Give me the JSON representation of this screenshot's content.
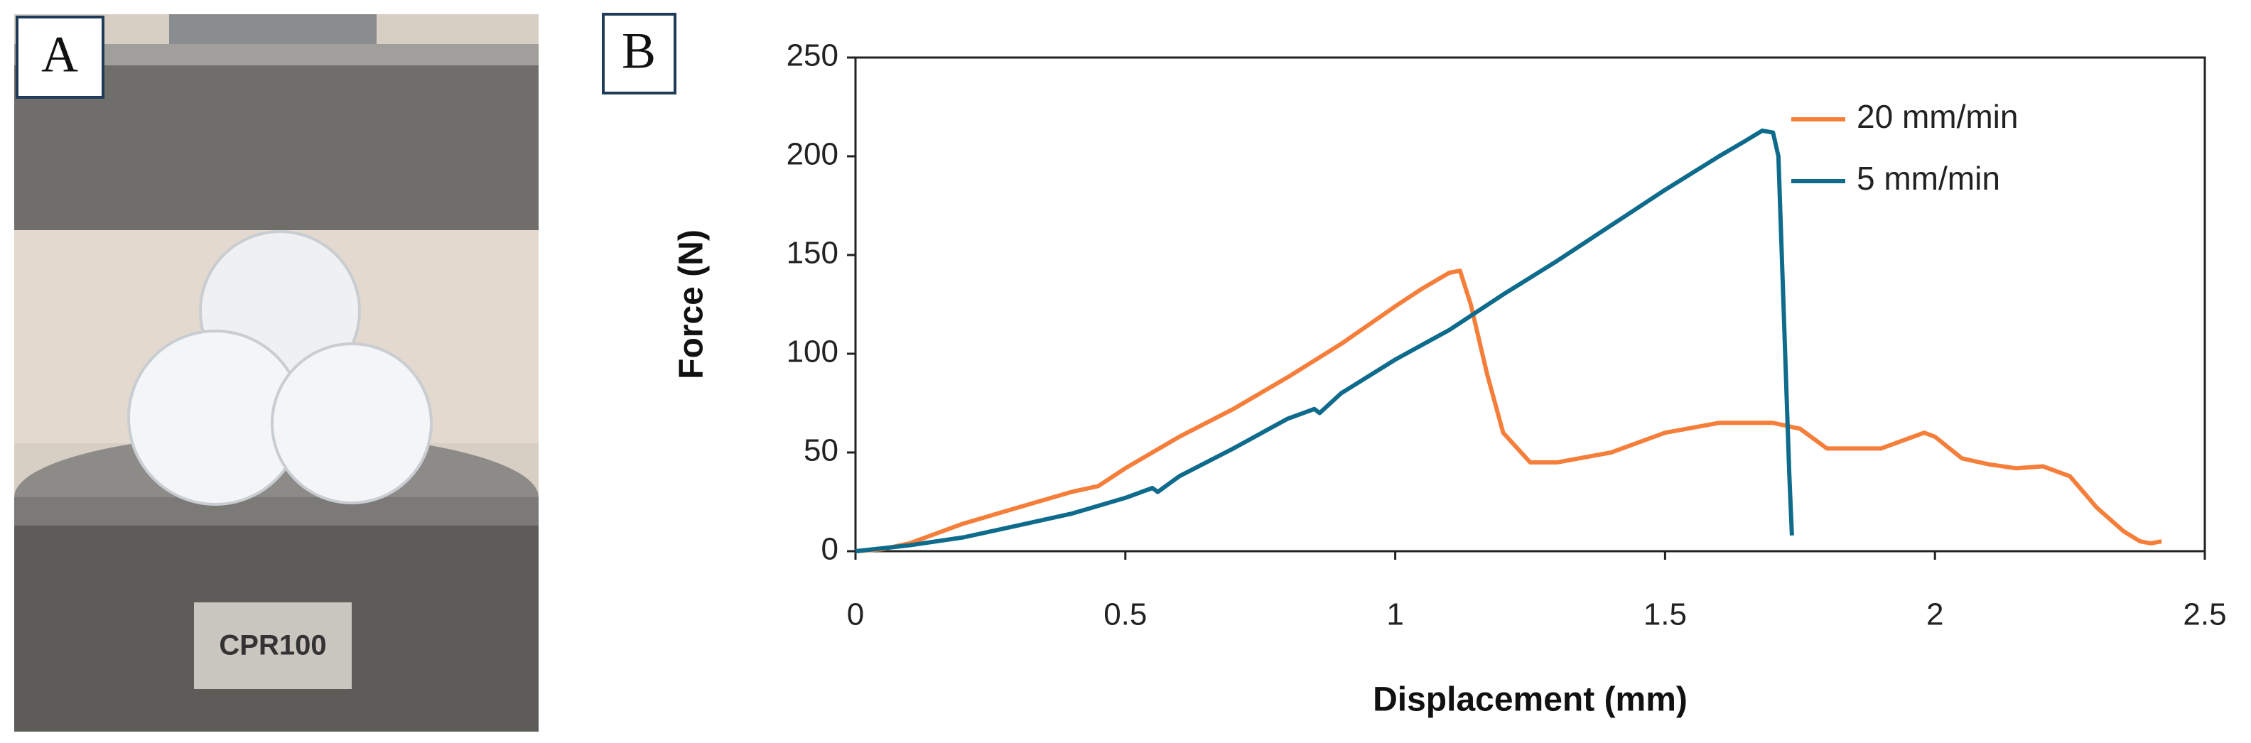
{
  "photo": {
    "panel_label": "A",
    "sticker_text": "CPR100"
  },
  "chart_data": {
    "type": "line",
    "panel_label": "B",
    "xlabel": "Displacement (mm)",
    "ylabel": "Force (N)",
    "xlim": [
      0,
      2.5
    ],
    "xticks": [
      0,
      0.5,
      1,
      1.5,
      2,
      2.5
    ],
    "ylim": [
      0,
      250
    ],
    "yticks": [
      0,
      50,
      100,
      150,
      200,
      250
    ],
    "grid": false,
    "legend": "upper right",
    "series": [
      {
        "name": "20 mm/min",
        "color": "#f57f3a",
        "x": [
          0,
          0.05,
          0.1,
          0.2,
          0.3,
          0.4,
          0.45,
          0.5,
          0.6,
          0.7,
          0.8,
          0.9,
          1.0,
          1.05,
          1.1,
          1.12,
          1.14,
          1.17,
          1.2,
          1.25,
          1.3,
          1.4,
          1.5,
          1.6,
          1.7,
          1.75,
          1.8,
          1.85,
          1.9,
          1.95,
          1.98,
          2.0,
          2.05,
          2.1,
          2.15,
          2.2,
          2.25,
          2.3,
          2.35,
          2.38,
          2.4,
          2.42
        ],
        "values": [
          0,
          1,
          4,
          14,
          22,
          30,
          33,
          42,
          58,
          72,
          88,
          105,
          124,
          133,
          141,
          142,
          125,
          90,
          60,
          45,
          45,
          50,
          60,
          65,
          65,
          62,
          52,
          52,
          52,
          57,
          60,
          58,
          47,
          44,
          42,
          43,
          38,
          22,
          10,
          5,
          4,
          5
        ]
      },
      {
        "name": "5 mm/min",
        "color": "#0e6b8c",
        "x": [
          0,
          0.1,
          0.2,
          0.3,
          0.4,
          0.5,
          0.55,
          0.56,
          0.6,
          0.7,
          0.8,
          0.85,
          0.86,
          0.9,
          1.0,
          1.1,
          1.2,
          1.3,
          1.4,
          1.5,
          1.6,
          1.65,
          1.68,
          1.7,
          1.71,
          1.72,
          1.73,
          1.735
        ],
        "values": [
          0,
          3,
          7,
          13,
          19,
          27,
          32,
          30,
          38,
          52,
          67,
          72,
          70,
          80,
          97,
          112,
          130,
          147,
          165,
          183,
          200,
          208,
          213,
          212,
          200,
          120,
          40,
          8
        ]
      }
    ]
  }
}
